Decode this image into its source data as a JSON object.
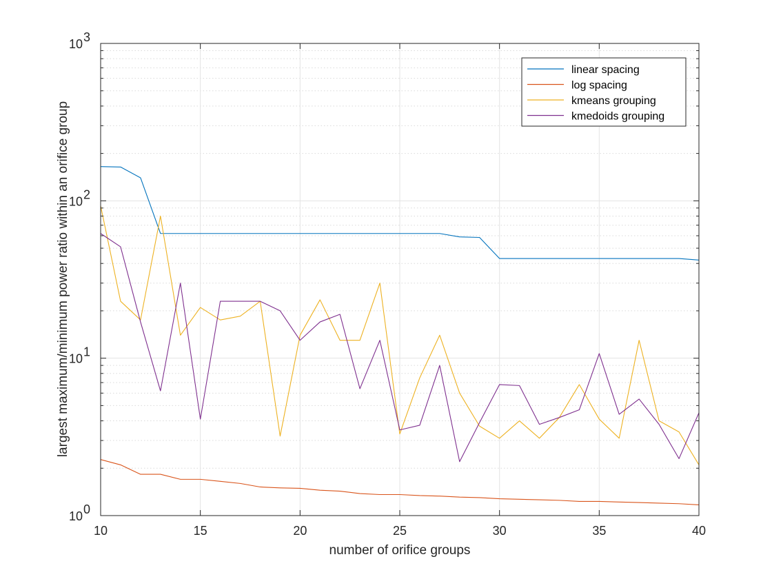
{
  "chart_data": {
    "type": "line",
    "title": "",
    "xlabel": "number of orifice groups",
    "ylabel": "largest maximum/minimum power ratio within an orifice group",
    "x": [
      10,
      11,
      12,
      13,
      14,
      15,
      16,
      17,
      18,
      19,
      20,
      21,
      22,
      23,
      24,
      25,
      26,
      27,
      28,
      29,
      30,
      31,
      32,
      33,
      34,
      35,
      36,
      37,
      38,
      39,
      40
    ],
    "xlim": [
      10,
      40
    ],
    "ylim": [
      1,
      1000
    ],
    "yscale": "log",
    "xticks": [
      10,
      15,
      20,
      25,
      30,
      35,
      40
    ],
    "xtick_labels": [
      "10",
      "15",
      "20",
      "25",
      "30",
      "35",
      "40"
    ],
    "yticks": [
      1,
      10,
      100,
      1000
    ],
    "ytick_labels": [
      {
        "base": "10",
        "exp": "0"
      },
      {
        "base": "10",
        "exp": "1"
      },
      {
        "base": "10",
        "exp": "2"
      },
      {
        "base": "10",
        "exp": "3"
      }
    ],
    "grid": true,
    "legend_position": "top-right",
    "series": [
      {
        "name": "linear spacing",
        "color": "#0072BD",
        "values": [
          165,
          164,
          140,
          62,
          62,
          62,
          62,
          62,
          62,
          62,
          62,
          62,
          62,
          62,
          62,
          62,
          62,
          62,
          59,
          58.5,
          43,
          43,
          43,
          43,
          43,
          43,
          43,
          43,
          43,
          43,
          42
        ]
      },
      {
        "name": "log spacing",
        "color": "#D95319",
        "values": [
          2.27,
          2.1,
          1.83,
          1.83,
          1.7,
          1.7,
          1.65,
          1.6,
          1.52,
          1.5,
          1.49,
          1.45,
          1.43,
          1.38,
          1.36,
          1.36,
          1.34,
          1.33,
          1.31,
          1.3,
          1.28,
          1.27,
          1.26,
          1.25,
          1.23,
          1.23,
          1.22,
          1.21,
          1.2,
          1.19,
          1.17
        ]
      },
      {
        "name": "kmeans grouping",
        "color": "#EDB120",
        "values": [
          93,
          23,
          17.5,
          80,
          14,
          21,
          17.5,
          18.5,
          23,
          3.2,
          14,
          23.5,
          13,
          13,
          30,
          3.3,
          7.5,
          14,
          6,
          3.7,
          3.1,
          4,
          3.1,
          4.2,
          6.8,
          4.1,
          3.1,
          13,
          4,
          3.4,
          2.1
        ]
      },
      {
        "name": "kmedoids grouping",
        "color": "#7E2F8E",
        "values": [
          62,
          51,
          17,
          6.2,
          30,
          4.1,
          23,
          23,
          23,
          20,
          13,
          17,
          19,
          6.4,
          13,
          3.5,
          3.75,
          9,
          2.2,
          3.9,
          6.8,
          6.7,
          3.8,
          4.2,
          4.7,
          10.7,
          4.4,
          5.5,
          3.8,
          2.3,
          4.5
        ]
      }
    ]
  }
}
